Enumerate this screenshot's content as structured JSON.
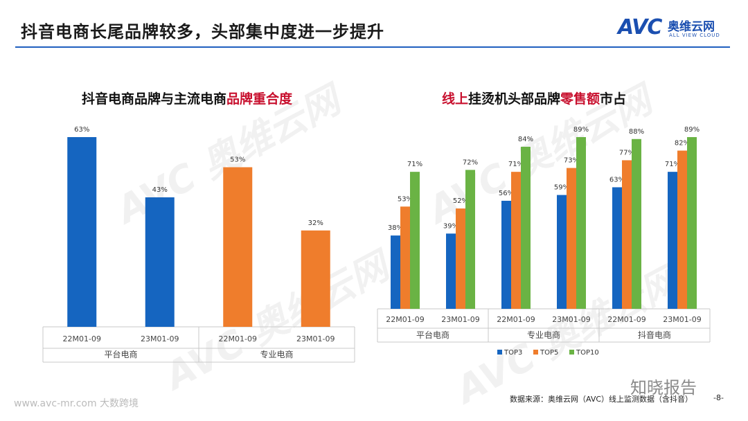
{
  "header": {
    "title": "抖音电商长尾品牌较多，头部集中度进一步提升",
    "logo_mark": "AVC",
    "logo_cn": "奥维云网",
    "logo_en": "ALL VIEW CLOUD"
  },
  "chart1_title": {
    "normal": "抖音电商品牌与主流电商",
    "highlight": "品牌重合度"
  },
  "chart2_title": {
    "hl1": "线上",
    "mid": "挂烫机头部品牌",
    "hl2": "零售额",
    "end": "市占"
  },
  "footer": {
    "source": "数据来源：奥维云网（AVC）线上监测数据（含抖音）",
    "page": "-8-",
    "wm_left": "www.avc-mr.com  大数跨境",
    "wm_right": "知晓报告"
  },
  "colors": {
    "blue": "#1565c0",
    "orange": "#ef7d2c",
    "green": "#6ab344",
    "accent": "#c8102e"
  },
  "chart_data": [
    {
      "type": "bar",
      "title": "抖音电商品牌与主流电商品牌重合度",
      "groups": [
        "平台电商",
        "专业电商"
      ],
      "categories": [
        "22M01-09",
        "23M01-09",
        "22M01-09",
        "23M01-09"
      ],
      "values": [
        63,
        43,
        53,
        32
      ],
      "labels": [
        "63%",
        "43%",
        "53%",
        "32%"
      ],
      "bar_colors": [
        "#1565c0",
        "#1565c0",
        "#ef7d2c",
        "#ef7d2c"
      ],
      "ylim": [
        0,
        63
      ]
    },
    {
      "type": "bar",
      "title": "线上挂烫机头部品牌零售额市占",
      "groups": [
        "平台电商",
        "专业电商",
        "抖音电商"
      ],
      "categories": [
        "22M01-09",
        "23M01-09",
        "22M01-09",
        "23M01-09",
        "22M01-09",
        "23M01-09"
      ],
      "series": [
        {
          "name": "TOP3",
          "color": "#1565c0",
          "values": [
            38,
            39,
            56,
            59,
            63,
            71
          ],
          "labels": [
            "38%",
            "39%",
            "56%",
            "59%",
            "63%",
            "71%"
          ]
        },
        {
          "name": "TOP5",
          "color": "#ef7d2c",
          "values": [
            53,
            52,
            71,
            73,
            77,
            82
          ],
          "labels": [
            "53%",
            "52%",
            "71%",
            "73%",
            "77%",
            "82%"
          ]
        },
        {
          "name": "TOP10",
          "color": "#6ab344",
          "values": [
            71,
            72,
            84,
            89,
            88,
            89
          ],
          "labels": [
            "71%",
            "72%",
            "84%",
            "89%",
            "88%",
            "89%"
          ]
        }
      ],
      "ylim": [
        0,
        89
      ]
    }
  ]
}
